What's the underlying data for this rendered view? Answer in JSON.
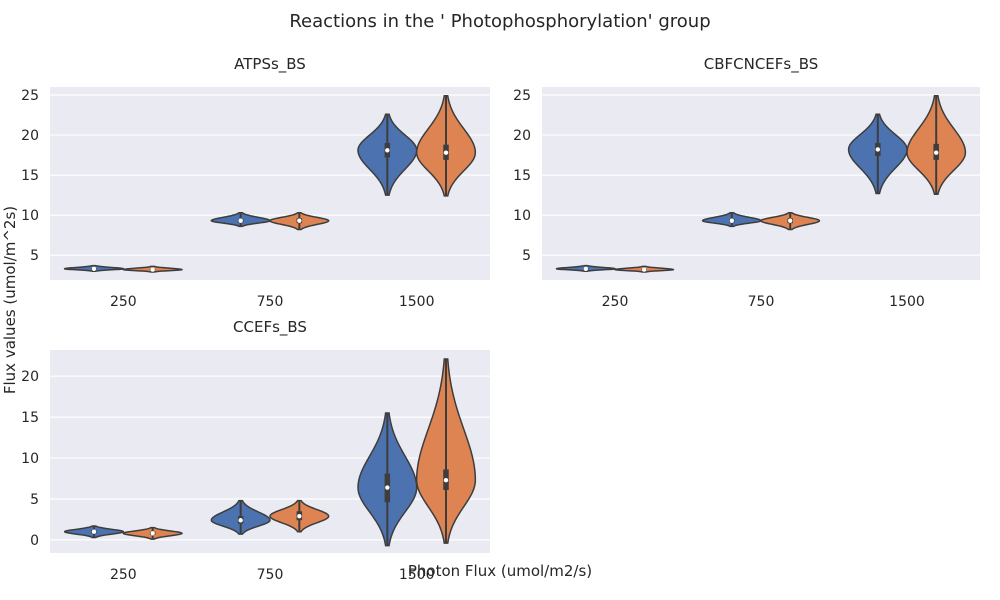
{
  "title": "Reactions in the ' Photophosphorylation' group",
  "xlabel": "Photon Flux (umol/m2/s)",
  "ylabel": "Flux values (umol/m^2s)",
  "colors": {
    "series_a": "#4c72b0",
    "series_b": "#dd8452",
    "background": "#eaeaf2",
    "grid": "#ffffff",
    "outline": "#3d3d3d"
  },
  "chart_data": [
    {
      "type": "violin",
      "title": "ATPSs_BS",
      "categories": [
        "250",
        "750",
        "1500"
      ],
      "yticks": [
        5,
        10,
        15,
        20,
        25
      ],
      "ylim": [
        1.9,
        26.0
      ],
      "grid": true,
      "series": [
        {
          "values": [
            {
              "min": 3.0,
              "max": 3.7,
              "median": 3.3,
              "q1": 3.2,
              "q3": 3.4
            },
            {
              "min": 8.6,
              "max": 10.3,
              "median": 9.3,
              "q1": 9.1,
              "q3": 9.5
            },
            {
              "min": 12.5,
              "max": 22.6,
              "median": 18.1,
              "q1": 17.2,
              "q3": 19.0
            }
          ]
        },
        {
          "values": [
            {
              "min": 2.9,
              "max": 3.6,
              "median": 3.2,
              "q1": 3.1,
              "q3": 3.3
            },
            {
              "min": 8.2,
              "max": 10.3,
              "median": 9.3,
              "q1": 9.0,
              "q3": 9.6
            },
            {
              "min": 12.4,
              "max": 24.9,
              "median": 17.8,
              "q1": 16.9,
              "q3": 18.8
            }
          ]
        }
      ]
    },
    {
      "type": "violin",
      "title": "CBFCNCEFs_BS",
      "categories": [
        "250",
        "750",
        "1500"
      ],
      "yticks": [
        5,
        10,
        15,
        20,
        25
      ],
      "ylim": [
        1.9,
        26.0
      ],
      "grid": true,
      "series": [
        {
          "values": [
            {
              "min": 3.0,
              "max": 3.7,
              "median": 3.3,
              "q1": 3.2,
              "q3": 3.4
            },
            {
              "min": 8.6,
              "max": 10.3,
              "median": 9.3,
              "q1": 9.1,
              "q3": 9.5
            },
            {
              "min": 12.7,
              "max": 22.6,
              "median": 18.2,
              "q1": 17.4,
              "q3": 19.0
            }
          ]
        },
        {
          "values": [
            {
              "min": 2.9,
              "max": 3.6,
              "median": 3.2,
              "q1": 3.1,
              "q3": 3.3
            },
            {
              "min": 8.2,
              "max": 10.3,
              "median": 9.3,
              "q1": 9.0,
              "q3": 9.6
            },
            {
              "min": 12.6,
              "max": 24.9,
              "median": 17.8,
              "q1": 16.9,
              "q3": 18.9
            }
          ]
        }
      ]
    },
    {
      "type": "violin",
      "title": "CCEFs_BS",
      "categories": [
        "250",
        "750",
        "1500"
      ],
      "yticks": [
        0,
        5,
        10,
        15,
        20
      ],
      "ylim": [
        -1.6,
        23.2
      ],
      "grid": true,
      "series": [
        {
          "values": [
            {
              "min": 0.3,
              "max": 1.7,
              "median": 1.0,
              "q1": 0.8,
              "q3": 1.2
            },
            {
              "min": 0.7,
              "max": 4.8,
              "median": 2.4,
              "q1": 2.0,
              "q3": 2.9
            },
            {
              "min": -0.7,
              "max": 15.5,
              "median": 6.4,
              "q1": 4.6,
              "q3": 8.1
            }
          ]
        },
        {
          "values": [
            {
              "min": 0.1,
              "max": 1.5,
              "median": 0.8,
              "q1": 0.6,
              "q3": 1.0
            },
            {
              "min": 1.0,
              "max": 4.8,
              "median": 2.9,
              "q1": 2.4,
              "q3": 3.5
            },
            {
              "min": -0.4,
              "max": 22.1,
              "median": 7.3,
              "q1": 6.1,
              "q3": 8.6
            }
          ]
        }
      ]
    }
  ]
}
